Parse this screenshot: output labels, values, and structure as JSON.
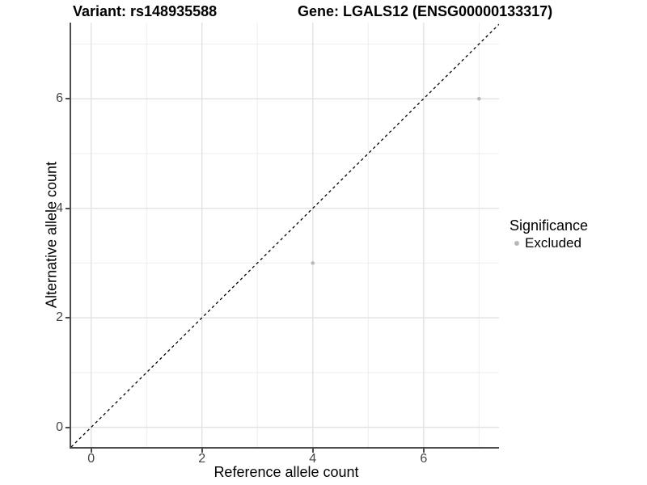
{
  "header": {
    "variant_title": "Variant: rs148935588",
    "gene_title": "Gene: LGALS12 (ENSG00000133317)"
  },
  "chart_data": {
    "type": "scatter",
    "title": "Variant: rs148935588    Gene: LGALS12 (ENSG00000133317)",
    "xlabel": "Reference allele count",
    "ylabel": "Alternative allele count",
    "x_ticks": [
      0,
      2,
      4,
      6
    ],
    "y_ticks": [
      0,
      2,
      4,
      6
    ],
    "x_minor_ticks": [
      1,
      3,
      5,
      7
    ],
    "y_minor_ticks": [
      1,
      3,
      5,
      7
    ],
    "xlim": [
      -0.36,
      7.36
    ],
    "ylim": [
      -0.36,
      7.39
    ],
    "grid": true,
    "reference_line": {
      "type": "identity y=x",
      "style": "dashed",
      "color": "#000000"
    },
    "series": [
      {
        "name": "Excluded",
        "color": "#b9b9b9",
        "points": [
          {
            "x": 4,
            "y": 3
          },
          {
            "x": 7,
            "y": 6
          }
        ]
      }
    ],
    "legend": {
      "title": "Significance",
      "position": "right",
      "items": [
        {
          "label": "Excluded",
          "color": "#b9b9b9"
        }
      ]
    }
  },
  "legend": {
    "title": "Significance",
    "item_label": "Excluded"
  },
  "colors": {
    "point": "#b9b9b9",
    "grid_major": "#e2e2e2",
    "grid_minor": "#ededed",
    "axis_line": "#4d4d4d",
    "dashed_line": "#000000",
    "tick_label": "#454545"
  }
}
